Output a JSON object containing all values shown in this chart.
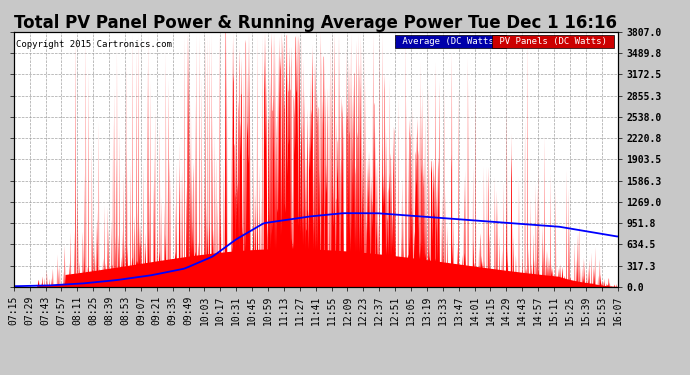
{
  "title": "Total PV Panel Power & Running Average Power Tue Dec 1 16:16",
  "copyright": "Copyright 2015 Cartronics.com",
  "legend_avg": "Average (DC Watts)",
  "legend_pv": "PV Panels (DC Watts)",
  "ymax": 3807.0,
  "yticks": [
    0.0,
    317.3,
    634.5,
    951.8,
    1269.0,
    1586.3,
    1903.5,
    2220.8,
    2538.0,
    2855.3,
    3172.5,
    3489.8,
    3807.0
  ],
  "bg_color": "#c8c8c8",
  "plot_bg_color": "#ffffff",
  "bar_color": "#ff0000",
  "avg_color": "#0000ff",
  "grid_color": "#999999",
  "title_fontsize": 12,
  "tick_fontsize": 7,
  "tick_labels": [
    "07:15",
    "07:29",
    "07:43",
    "07:57",
    "08:11",
    "08:25",
    "08:39",
    "08:53",
    "09:07",
    "09:21",
    "09:35",
    "09:49",
    "10:03",
    "10:17",
    "10:31",
    "10:45",
    "10:59",
    "11:13",
    "11:27",
    "11:41",
    "11:55",
    "12:09",
    "12:23",
    "12:37",
    "12:51",
    "13:05",
    "13:19",
    "13:33",
    "13:47",
    "14:01",
    "14:15",
    "14:29",
    "14:43",
    "14:57",
    "15:11",
    "15:25",
    "15:39",
    "15:53",
    "16:07"
  ],
  "avg_x": [
    0,
    30,
    60,
    90,
    120,
    150,
    175,
    195,
    220,
    260,
    290,
    320,
    360,
    400,
    440,
    480,
    532
  ],
  "avg_y": [
    10,
    20,
    50,
    100,
    170,
    270,
    450,
    700,
    950,
    1050,
    1100,
    1100,
    1050,
    1000,
    950,
    900,
    750
  ]
}
